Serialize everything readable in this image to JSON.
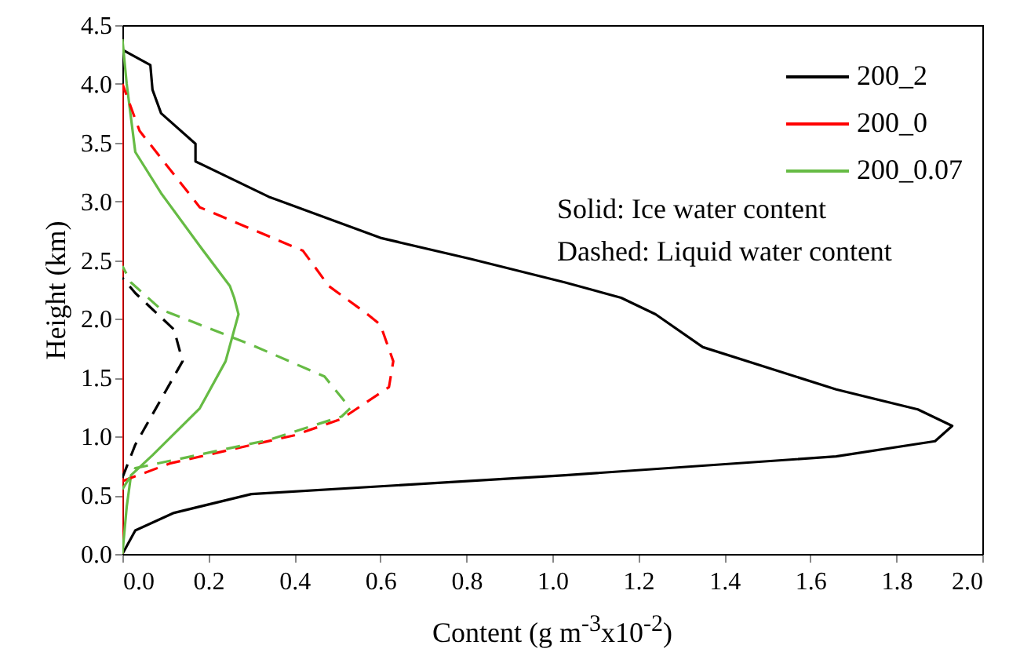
{
  "chart_data": {
    "type": "line",
    "xlabel": "Content (g m$^{-3}$x10$^{-2}$)",
    "ylabel": "Height (km)",
    "xlim": [
      0,
      2
    ],
    "ylim": [
      0,
      4.5
    ],
    "xticks": [
      {
        "value": 0,
        "label": "0.0"
      },
      {
        "value": 0.2,
        "label": "0.2"
      },
      {
        "value": 0.4,
        "label": "0.4"
      },
      {
        "value": 0.6,
        "label": "0.6"
      },
      {
        "value": 0.8,
        "label": "0.8"
      },
      {
        "value": 1,
        "label": "1.0"
      },
      {
        "value": 1.2,
        "label": "1.2"
      },
      {
        "value": 1.4,
        "label": "1.4"
      },
      {
        "value": 1.6,
        "label": "1.6"
      },
      {
        "value": 1.8,
        "label": "1.8"
      },
      {
        "value": 2,
        "label": "2.0"
      }
    ],
    "yticks": [
      {
        "value": 0,
        "label": "0.0"
      },
      {
        "value": 0.5,
        "label": "0.5"
      },
      {
        "value": 1,
        "label": "1.0"
      },
      {
        "value": 1.5,
        "label": "1.5"
      },
      {
        "value": 2,
        "label": "2.0"
      },
      {
        "value": 2.5,
        "label": "2.5"
      },
      {
        "value": 3,
        "label": "3.0"
      },
      {
        "value": 3.5,
        "label": "3.5"
      },
      {
        "value": 4,
        "label": "4.0"
      },
      {
        "value": 4.5,
        "label": "4.5"
      }
    ],
    "legend": "top right",
    "annotations": [
      "Solid: Ice water content",
      "Dashed: Liquid water content"
    ],
    "series": [
      {
        "name": "200_2",
        "color": "#000000",
        "line_style": "solid",
        "x": [
          0,
          0.03,
          0.12,
          0.3,
          1.03,
          1.66,
          1.89,
          1.93,
          1.85,
          1.66,
          1.35,
          1.24,
          1.16,
          1.03,
          0.81,
          0.6,
          0.34,
          0.17,
          0.17,
          0.09,
          0.07,
          0.065,
          0
        ],
        "values": [
          0,
          0.2,
          0.35,
          0.51,
          0.67,
          0.83,
          0.96,
          1.09,
          1.23,
          1.4,
          1.76,
          2.04,
          2.18,
          2.31,
          2.51,
          2.69,
          3.04,
          3.34,
          3.49,
          3.75,
          3.95,
          4.16,
          4.29
        ]
      },
      {
        "name": "200_0",
        "color": "#ff0000",
        "line_style": "solid",
        "x": [
          0,
          0,
          0
        ],
        "values": [
          0,
          2,
          4
        ]
      },
      {
        "name": "200_0.07",
        "color": "#66bb44",
        "line_style": "solid",
        "x": [
          0,
          0.01,
          0.02,
          0.07,
          0.18,
          0.24,
          0.27,
          0.26,
          0.25,
          0.18,
          0.09,
          0.03,
          0.01,
          0
        ],
        "values": [
          0,
          0.4,
          0.67,
          0.84,
          1.24,
          1.64,
          2.04,
          2.18,
          2.28,
          2.62,
          3.07,
          3.42,
          4,
          4.38
        ]
      },
      {
        "color": "#000000",
        "line_style": "dashed",
        "x": [
          0,
          0.03,
          0.14,
          0.12,
          0.03,
          0
        ],
        "values": [
          0.65,
          0.93,
          1.64,
          1.91,
          2.22,
          2.35
        ]
      },
      {
        "color": "#ff0000",
        "line_style": "dashed",
        "x": [
          0,
          0.11,
          0.4,
          0.51,
          0.62,
          0.63,
          0.6,
          0.57,
          0.48,
          0.42,
          0.18,
          0.04,
          0
        ],
        "values": [
          0.62,
          0.77,
          1.01,
          1.15,
          1.42,
          1.64,
          1.95,
          2.04,
          2.28,
          2.58,
          2.95,
          3.6,
          4
        ]
      },
      {
        "color": "#66bb44",
        "line_style": "dashed",
        "x": [
          0,
          0.03,
          0.34,
          0.51,
          0.53,
          0.47,
          0.3,
          0.09,
          0.02,
          0
        ],
        "values": [
          0.55,
          0.73,
          0.97,
          1.17,
          1.24,
          1.51,
          1.78,
          2.08,
          2.31,
          2.45
        ]
      }
    ]
  }
}
